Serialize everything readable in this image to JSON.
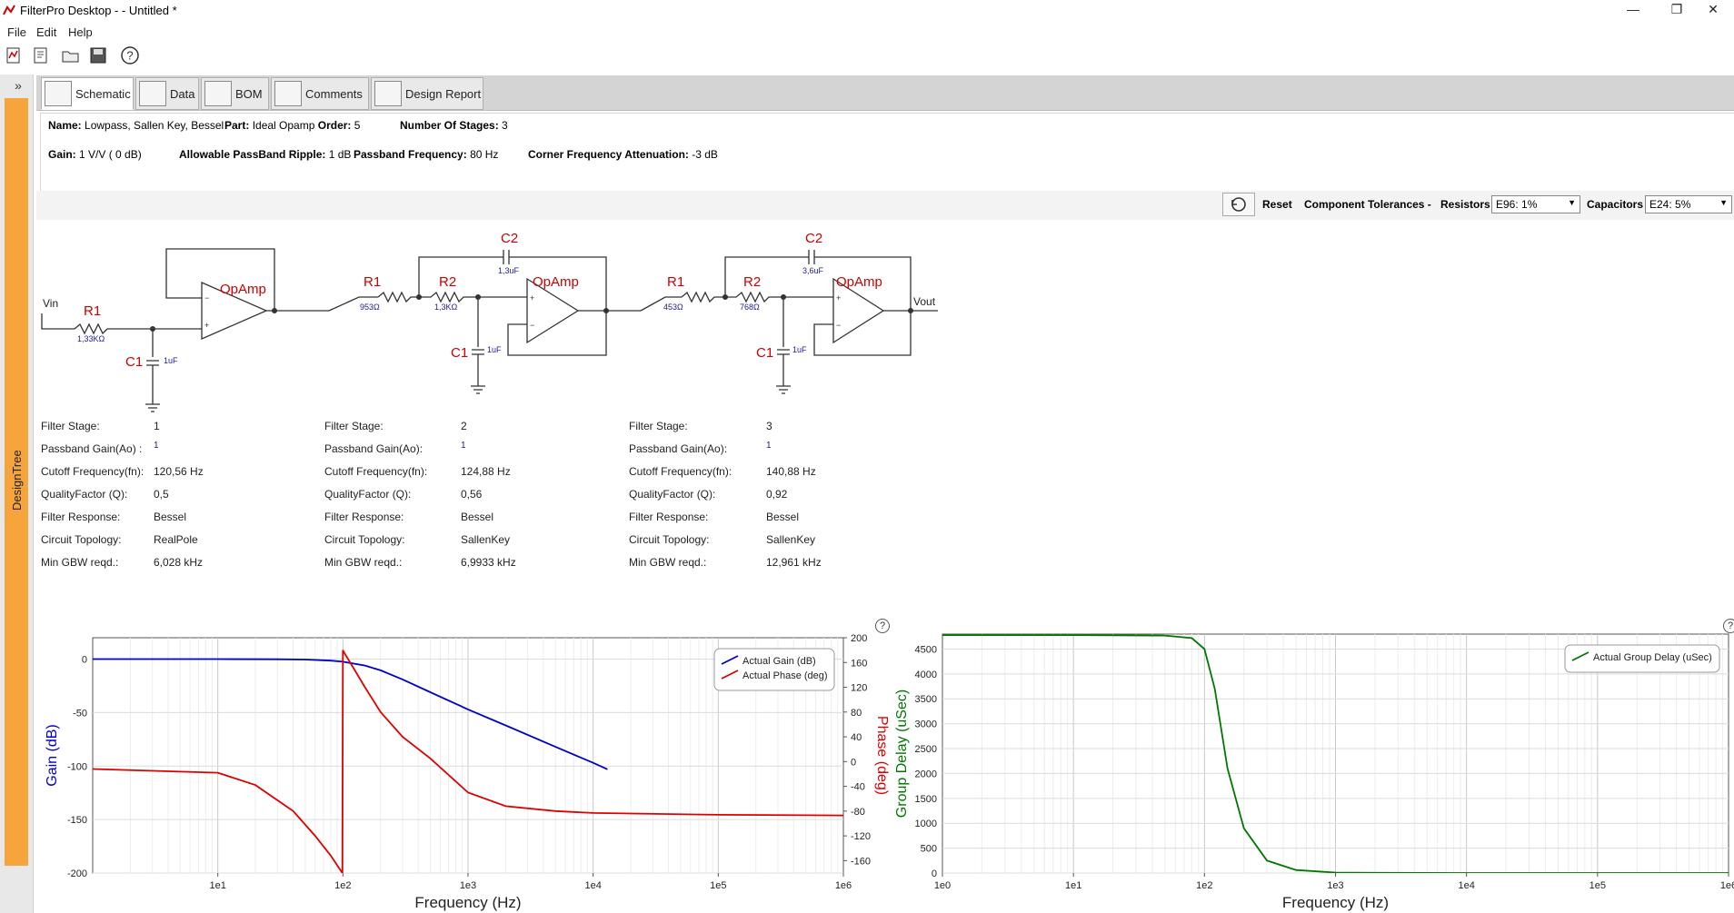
{
  "window": {
    "title": "FilterPro Desktop -  - Untitled *",
    "minimize": "—",
    "restore": "❐",
    "close": "✕"
  },
  "menu": [
    "File",
    "Edit",
    "Help"
  ],
  "toolbar_icons": [
    "new-design-icon",
    "new-wizard-icon",
    "open-folder-icon",
    "save-disk-icon",
    "help-icon"
  ],
  "sidebar": {
    "toggle": "»",
    "label": "DesignTree"
  },
  "tabs": [
    {
      "label": "Schematic",
      "icon": "schematic-icon",
      "active": true
    },
    {
      "label": "Data",
      "icon": "data-chart-icon",
      "active": false
    },
    {
      "label": "BOM",
      "icon": "bom-list-icon",
      "active": false
    },
    {
      "label": "Comments",
      "icon": "comments-note-icon",
      "active": false
    },
    {
      "label": "Design Report",
      "icon": "report-icon",
      "active": false
    }
  ],
  "info": {
    "name_label": "Name:",
    "name_value": "Lowpass, Sallen Key, Bessel",
    "part_label": "Part:",
    "part_value": "Ideal Opamp",
    "order_label": "Order:",
    "order_value": "5",
    "stages_label": "Number Of Stages:",
    "stages_value": "3",
    "gain_label": "Gain:",
    "gain_value": "1 V/V ( 0 dB)",
    "ripple_label": "Allowable PassBand Ripple:",
    "ripple_value": "1 dB",
    "pbfreq_label": "Passband Frequency:",
    "pbfreq_value": "80 Hz",
    "atten_label": "Corner Frequency Attenuation:",
    "atten_value": "-3 dB"
  },
  "tolerances": {
    "reset": "Reset",
    "heading": "Component Tolerances -",
    "resistors_label": "Resistors",
    "resistors_value": "E96: 1%",
    "capacitors_label": "Capacitors",
    "capacitors_value": "E24: 5%"
  },
  "schematic": {
    "vin": "Vin",
    "vout": "Vout",
    "opamp": "OpAmp",
    "stage1": {
      "r1": "R1",
      "r1_val": "1,33KΩ",
      "c1": "C1",
      "c1_val": "1uF"
    },
    "stage2": {
      "r1": "R1",
      "r1_val": "953Ω",
      "r2": "R2",
      "r2_val": "1,3KΩ",
      "c1": "C1",
      "c1_val": "1uF",
      "c2": "C2",
      "c2_val": "1,3uF"
    },
    "stage3": {
      "r1": "R1",
      "r1_val": "453Ω",
      "r2": "R2",
      "r2_val": "768Ω",
      "c1": "C1",
      "c1_val": "1uF",
      "c2": "C2",
      "c2_val": "3,6uF"
    }
  },
  "stages": [
    {
      "labels": [
        "Filter Stage:",
        "Passband Gain(Ao) :",
        "Cutoff Frequency(fn):",
        "QualityFactor (Q):",
        "Filter Response:",
        "Circuit Topology:",
        "Min GBW reqd.:"
      ],
      "values": [
        "1",
        "1",
        "120,56 Hz",
        "0,5",
        "Bessel",
        "RealPole",
        "6,028 kHz"
      ]
    },
    {
      "labels": [
        "Filter Stage:",
        "Passband Gain(Ao):",
        "Cutoff Frequency(fn):",
        "QualityFactor (Q):",
        "Filter Response:",
        "Circuit Topology:",
        "Min GBW reqd.:"
      ],
      "values": [
        "2",
        "1",
        "124,88 Hz",
        "0,56",
        "Bessel",
        "SallenKey",
        "6,9933 kHz"
      ]
    },
    {
      "labels": [
        "Filter Stage:",
        "Passband Gain(Ao):",
        "Cutoff Frequency(fn):",
        "QualityFactor (Q):",
        "Filter Response:",
        "Circuit Topology:",
        "Min GBW reqd.:"
      ],
      "values": [
        "3",
        "1",
        "140,88 Hz",
        "0,92",
        "Bessel",
        "SallenKey",
        "12,961 kHz"
      ]
    }
  ],
  "help_mark": "?",
  "chart_data": [
    {
      "type": "line",
      "xlabel": "Frequency (Hz)",
      "ylabel": "Gain (dB)",
      "y2label": "Phase (deg)",
      "xscale": "log",
      "xlim": [
        1,
        1000000
      ],
      "ylim": [
        -200,
        20
      ],
      "y2lim": [
        -180,
        200
      ],
      "xticks": [
        "1e1",
        "1e2",
        "1e3",
        "1e4",
        "1e5",
        "1e6"
      ],
      "yticks": [
        "0",
        "-50",
        "-100",
        "-150",
        "-200"
      ],
      "y2ticks": [
        "200",
        "160",
        "120",
        "80",
        "40",
        "0",
        "-40",
        "-80",
        "-120",
        "-160"
      ],
      "legend": "top-right",
      "grid": true,
      "colors": {
        "gain": "#0000cc",
        "phase": "#dd0000",
        "axis_left": "#0000cc",
        "axis_right": "#dd0000"
      },
      "series": [
        {
          "name": "Actual Gain (dB)",
          "axis": "left",
          "x": [
            1,
            10,
            30,
            50,
            80,
            100,
            150,
            200,
            300,
            500,
            1000,
            2000,
            5000,
            10000,
            13000
          ],
          "y": [
            0,
            0,
            -0.1,
            -0.4,
            -1.4,
            -2.4,
            -6,
            -10.5,
            -19,
            -31,
            -47,
            -62,
            -82,
            -97,
            -103
          ]
        },
        {
          "name": "Actual Phase (deg)",
          "axis": "right",
          "x": [
            1,
            10,
            20,
            40,
            60,
            80,
            99,
            100,
            101,
            150,
            200,
            300,
            500,
            1000,
            2000,
            5000,
            10000,
            100000,
            1000000
          ],
          "y": [
            -12,
            -18,
            -38,
            -80,
            -120,
            -152,
            -180,
            180,
            178,
            120,
            80,
            40,
            5,
            -50,
            -72,
            -80,
            -83,
            -86,
            -87
          ]
        }
      ]
    },
    {
      "type": "line",
      "xlabel": "Frequency (Hz)",
      "ylabel": "Group Delay (uSec)",
      "xscale": "log",
      "xlim": [
        1,
        1000000
      ],
      "ylim": [
        0,
        4800
      ],
      "xticks": [
        "1e0",
        "1e1",
        "1e2",
        "1e3",
        "1e4",
        "1e5",
        "1e6"
      ],
      "yticks": [
        "4500",
        "4000",
        "3500",
        "3000",
        "2500",
        "2000",
        "1500",
        "1000",
        "500",
        "0"
      ],
      "legend": "top-right",
      "grid": true,
      "colors": {
        "delay": "#007700",
        "axis_left": "#007700"
      },
      "series": [
        {
          "name": "Actual Group Delay (uSec)",
          "x": [
            1,
            10,
            50,
            80,
            100,
            120,
            150,
            200,
            300,
            500,
            1000,
            2000,
            10000,
            1000000
          ],
          "y": [
            4780,
            4780,
            4770,
            4720,
            4500,
            3700,
            2100,
            900,
            250,
            60,
            10,
            3,
            0,
            0
          ]
        }
      ]
    }
  ]
}
